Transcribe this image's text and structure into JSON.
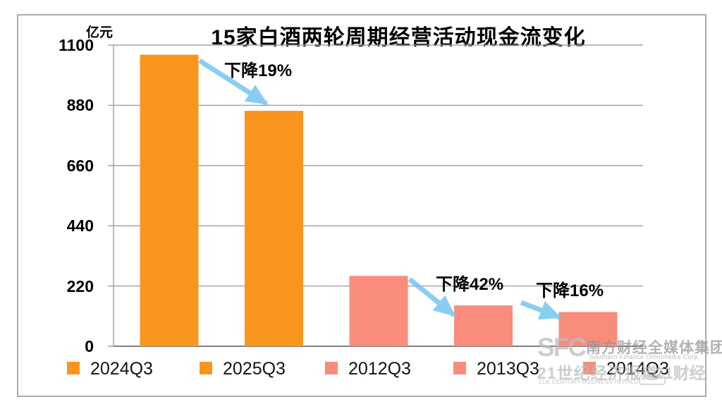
{
  "chart_data": {
    "type": "bar",
    "title": "15家白酒两轮周期经营活动现金流变化",
    "unit_label": "亿元",
    "categories": [
      "2024Q3",
      "2025Q3",
      "2012Q3",
      "2013Q3",
      "2014Q3"
    ],
    "values": [
      1065,
      860,
      257,
      149,
      125
    ],
    "bar_colors": [
      "#F8951D",
      "#F8951D",
      "#FA8C7C",
      "#FA8C7C",
      "#FA8C7C"
    ],
    "ylim": [
      0,
      1100
    ],
    "yticks": [
      0,
      220,
      440,
      660,
      880,
      1100
    ],
    "grid": true,
    "legend_position": "bottom",
    "gridline_color": "#a6a6a6",
    "baseline_color": "#7f7f7f",
    "arrow_color": "#6EC4EF",
    "annotations": [
      {
        "text": "下降19%",
        "from": "2024Q3",
        "to": "2025Q3"
      },
      {
        "text": "下降42%",
        "from": "2012Q3",
        "to": "2013Q3"
      },
      {
        "text": "下降16%",
        "from": "2013Q3",
        "to": "2014Q3"
      }
    ]
  },
  "legend": {
    "items": [
      {
        "label": "2024Q3",
        "color": "#F8951D"
      },
      {
        "label": "2025Q3",
        "color": "#F8951D"
      },
      {
        "label": "2012Q3",
        "color": "#FA8C7C"
      },
      {
        "label": "2013Q3",
        "color": "#FA8C7C"
      },
      {
        "label": "2014Q3",
        "color": "#FA8C7C"
      }
    ]
  },
  "watermark": {
    "sfc": "SFC",
    "corp_cn": "南方财经全媒体集团",
    "corp_en": "Southern Finance Omnimedia Corp.",
    "herald_cn": "21世纪经济报道",
    "herald_en": "21st CENTURY BUSINESS HERALD",
    "app_cn": "21财经"
  }
}
